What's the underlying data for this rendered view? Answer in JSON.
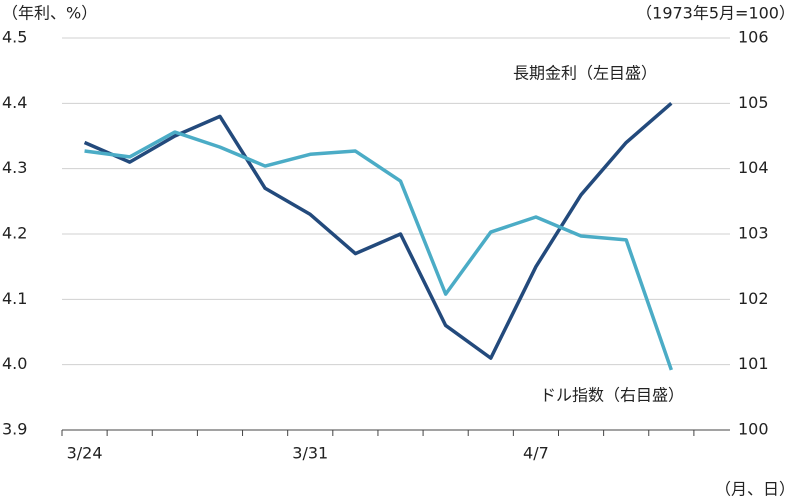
{
  "chart_data": {
    "type": "line",
    "y_unit_label": "（年利、%）",
    "y2_unit_label": "（1973年5月=100）",
    "x_unit_label": "（月、日）",
    "categories": [
      "3/24",
      null,
      null,
      null,
      null,
      "3/31",
      null,
      null,
      null,
      null,
      "4/7",
      null,
      null,
      null
    ],
    "series": [
      {
        "name": "長期金利（左目盛）",
        "color": "#234a7c",
        "axis": "y",
        "values": [
          4.34,
          4.31,
          4.35,
          4.38,
          4.27,
          4.23,
          4.17,
          4.2,
          4.06,
          4.01,
          4.15,
          4.26,
          4.34,
          4.4
        ]
      },
      {
        "name": "ドル指数（右目盛）",
        "color": "#4bacc6",
        "axis": "y2",
        "values": [
          104.27,
          104.18,
          104.56,
          104.33,
          104.04,
          104.22,
          104.27,
          103.81,
          102.08,
          103.03,
          103.26,
          102.97,
          102.91,
          100.92
        ]
      }
    ],
    "ylim": [
      3.9,
      4.5
    ],
    "yticks": [
      3.9,
      {
        "value": 4.0,
        "label": "4.0"
      },
      4.1,
      4.2,
      4.3,
      4.4,
      4.5
    ],
    "y2lim": [
      100,
      106
    ],
    "y2ticks": [
      100,
      101,
      102,
      103,
      104,
      105,
      106
    ],
    "grid": true
  }
}
